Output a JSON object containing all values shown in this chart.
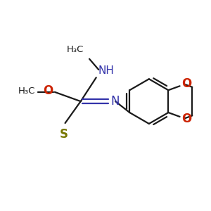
{
  "bg_color": "#ffffff",
  "bond_color": "#1a1a1a",
  "N_color": "#3333aa",
  "O_color": "#cc2200",
  "S_color": "#777700",
  "figsize": [
    3.0,
    3.0
  ],
  "dpi": 100,
  "xlim": [
    0,
    10
  ],
  "ylim": [
    0,
    10
  ]
}
